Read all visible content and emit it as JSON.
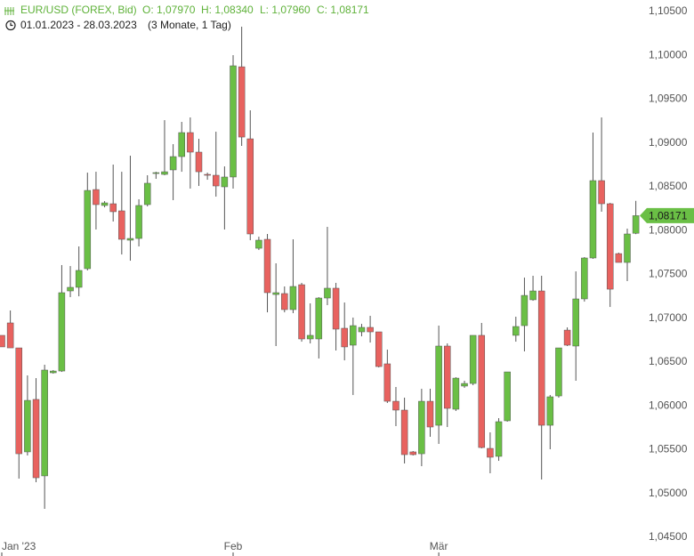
{
  "header": {
    "title": "EUR/USD (FOREX, Bid)",
    "open": "O: 1,07970",
    "high": "H: 1,08340",
    "low": "L: 1,07960",
    "close": "C: 1,08171",
    "range": "01.01.2023 - 28.03.2023",
    "period": "(3 Monate, 1 Tag)"
  },
  "chart_data": {
    "type": "candlestick",
    "categories": [
      "Jan '23",
      null,
      null,
      null,
      null,
      null,
      null,
      null,
      null,
      null,
      null,
      null,
      null,
      null,
      null,
      null,
      null,
      null,
      null,
      null,
      null,
      null,
      null,
      null,
      null,
      null,
      null,
      "Feb",
      null,
      null,
      null,
      null,
      null,
      null,
      null,
      null,
      null,
      null,
      null,
      null,
      null,
      null,
      null,
      null,
      null,
      null,
      null,
      null,
      null,
      null,
      null,
      "Mär",
      null,
      null,
      null,
      null,
      null,
      null,
      null,
      null,
      null,
      null,
      null,
      null,
      null,
      null,
      null,
      null,
      null,
      null,
      null,
      null,
      null,
      null,
      null
    ],
    "open": [
      1.06805,
      1.06947,
      1.06662,
      1.05475,
      1.06074,
      1.05201,
      1.06378,
      1.06398,
      1.07312,
      1.07353,
      1.07566,
      1.08469,
      1.08287,
      1.08307,
      1.08226,
      1.07891,
      1.07911,
      1.08297,
      1.08652,
      1.08642,
      1.08693,
      1.08845,
      1.09119,
      1.08896,
      1.08642,
      1.08632,
      1.085,
      1.08612,
      1.0987,
      1.09048,
      1.07799,
      1.07901,
      1.07271,
      1.07282,
      1.07099,
      1.07383,
      1.06764,
      1.06764,
      1.07231,
      1.07343,
      1.06886,
      1.06693,
      1.06845,
      1.06896,
      1.06845,
      1.0648,
      1.06053,
      1.05952,
      1.05475,
      1.05454,
      1.06053,
      1.05779,
      1.06683,
      1.05962,
      1.06226,
      1.06256,
      1.06805,
      1.05515,
      1.05424,
      1.0583,
      1.06805,
      1.06916,
      1.07211,
      1.07312,
      1.05779,
      1.06114,
      1.06865,
      1.06683,
      1.07221,
      1.07688,
      1.08571,
      1.08307,
      1.07738,
      1.07637,
      1.0797
    ],
    "high": [
      1.06805,
      1.07089,
      1.06662,
      1.06348,
      1.06317,
      1.0647,
      1.06409,
      1.07607,
      1.07596,
      1.0782,
      1.08662,
      1.08672,
      1.08337,
      1.08754,
      1.08672,
      1.08855,
      1.08358,
      1.08632,
      1.08672,
      1.09261,
      1.08987,
      1.09241,
      1.09292,
      1.09048,
      1.08662,
      1.09129,
      1.08733,
      1.10002,
      1.10327,
      1.09373,
      1.07931,
      1.07962,
      1.07627,
      1.07363,
      1.07901,
      1.07404,
      1.0717,
      1.07241,
      1.08043,
      1.07404,
      1.0718,
      1.07008,
      1.06936,
      1.07028,
      1.06845,
      1.06642,
      1.06216,
      1.06094,
      1.05485,
      1.06195,
      1.06195,
      1.06916,
      1.06713,
      1.06327,
      1.06287,
      1.06805,
      1.06947,
      1.05698,
      1.0586,
      1.06388,
      1.07018,
      1.07464,
      1.07485,
      1.07485,
      1.06124,
      1.06662,
      1.06896,
      1.07535,
      1.07698,
      1.09119,
      1.09292,
      1.08317,
      1.07749,
      1.08023,
      1.0834
    ],
    "low": [
      1.06673,
      1.06662,
      1.0517,
      1.05434,
      1.05129,
      1.04825,
      1.06368,
      1.06388,
      1.07241,
      1.07251,
      1.07546,
      1.08013,
      1.08266,
      1.08104,
      1.07728,
      1.07657,
      1.0782,
      1.08277,
      1.08591,
      1.08632,
      1.08348,
      1.08672,
      1.0848,
      1.0851,
      1.08581,
      1.08388,
      1.08013,
      1.0848,
      1.08967,
      1.07891,
      1.07779,
      1.07068,
      1.06683,
      1.07068,
      1.07058,
      1.06733,
      1.06713,
      1.06541,
      1.0715,
      1.06632,
      1.0652,
      1.06124,
      1.06794,
      1.06723,
      1.06439,
      1.06033,
      1.05769,
      1.05343,
      1.05434,
      1.05312,
      1.05647,
      1.05566,
      1.05759,
      1.05942,
      1.06206,
      1.06236,
      1.05515,
      1.05231,
      1.05373,
      1.0582,
      1.06733,
      1.06622,
      1.072,
      1.0516,
      1.05505,
      1.06094,
      1.06683,
      1.06287,
      1.0719,
      1.07678,
      1.08216,
      1.07129,
      1.07637,
      1.07424,
      1.0796
    ],
    "close": [
      1.06673,
      1.06662,
      1.05454,
      1.06063,
      1.0518,
      1.06409,
      1.06398,
      1.07292,
      1.07353,
      1.07546,
      1.08459,
      1.08297,
      1.08317,
      1.08216,
      1.07901,
      1.07911,
      1.08287,
      1.08541,
      1.08662,
      1.08672,
      1.08845,
      1.09119,
      1.08896,
      1.08672,
      1.08632,
      1.0851,
      1.08612,
      1.09881,
      1.09068,
      1.07962,
      1.07891,
      1.07292,
      1.07292,
      1.07099,
      1.07363,
      1.06764,
      1.06805,
      1.07231,
      1.07343,
      1.06876,
      1.06673,
      1.06916,
      1.06896,
      1.06845,
      1.06449,
      1.06053,
      1.05952,
      1.05444,
      1.05444,
      1.06053,
      1.05759,
      1.06683,
      1.05972,
      1.06317,
      1.06256,
      1.06805,
      1.05525,
      1.05414,
      1.0582,
      1.06388,
      1.06906,
      1.07261,
      1.07312,
      1.05779,
      1.06104,
      1.06662,
      1.06693,
      1.07221,
      1.07688,
      1.08571,
      1.08307,
      1.07332,
      1.07637,
      1.07962,
      1.08171
    ],
    "up_color": "#6abf45",
    "down_color": "#e8625f",
    "ylim": [
      1.04287,
      1.10632
    ],
    "yticks": [
      {
        "value": 1.045,
        "label": "1,04500"
      },
      {
        "value": 1.05,
        "label": "1,05000"
      },
      {
        "value": 1.055,
        "label": "1,05500"
      },
      {
        "value": 1.06,
        "label": "1,06000"
      },
      {
        "value": 1.065,
        "label": "1,06500"
      },
      {
        "value": 1.07,
        "label": "1,07000"
      },
      {
        "value": 1.075,
        "label": "1,07500"
      },
      {
        "value": 1.08,
        "label": "1,08000"
      },
      {
        "value": 1.085,
        "label": "1,08500"
      },
      {
        "value": 1.09,
        "label": "1,09000"
      },
      {
        "value": 1.095,
        "label": "1,09500"
      },
      {
        "value": 1.1,
        "label": "1,10000"
      },
      {
        "value": 1.105,
        "label": "1,10500"
      }
    ],
    "last_price": {
      "value": 1.08171,
      "label": "1,08171"
    },
    "grid": false
  }
}
